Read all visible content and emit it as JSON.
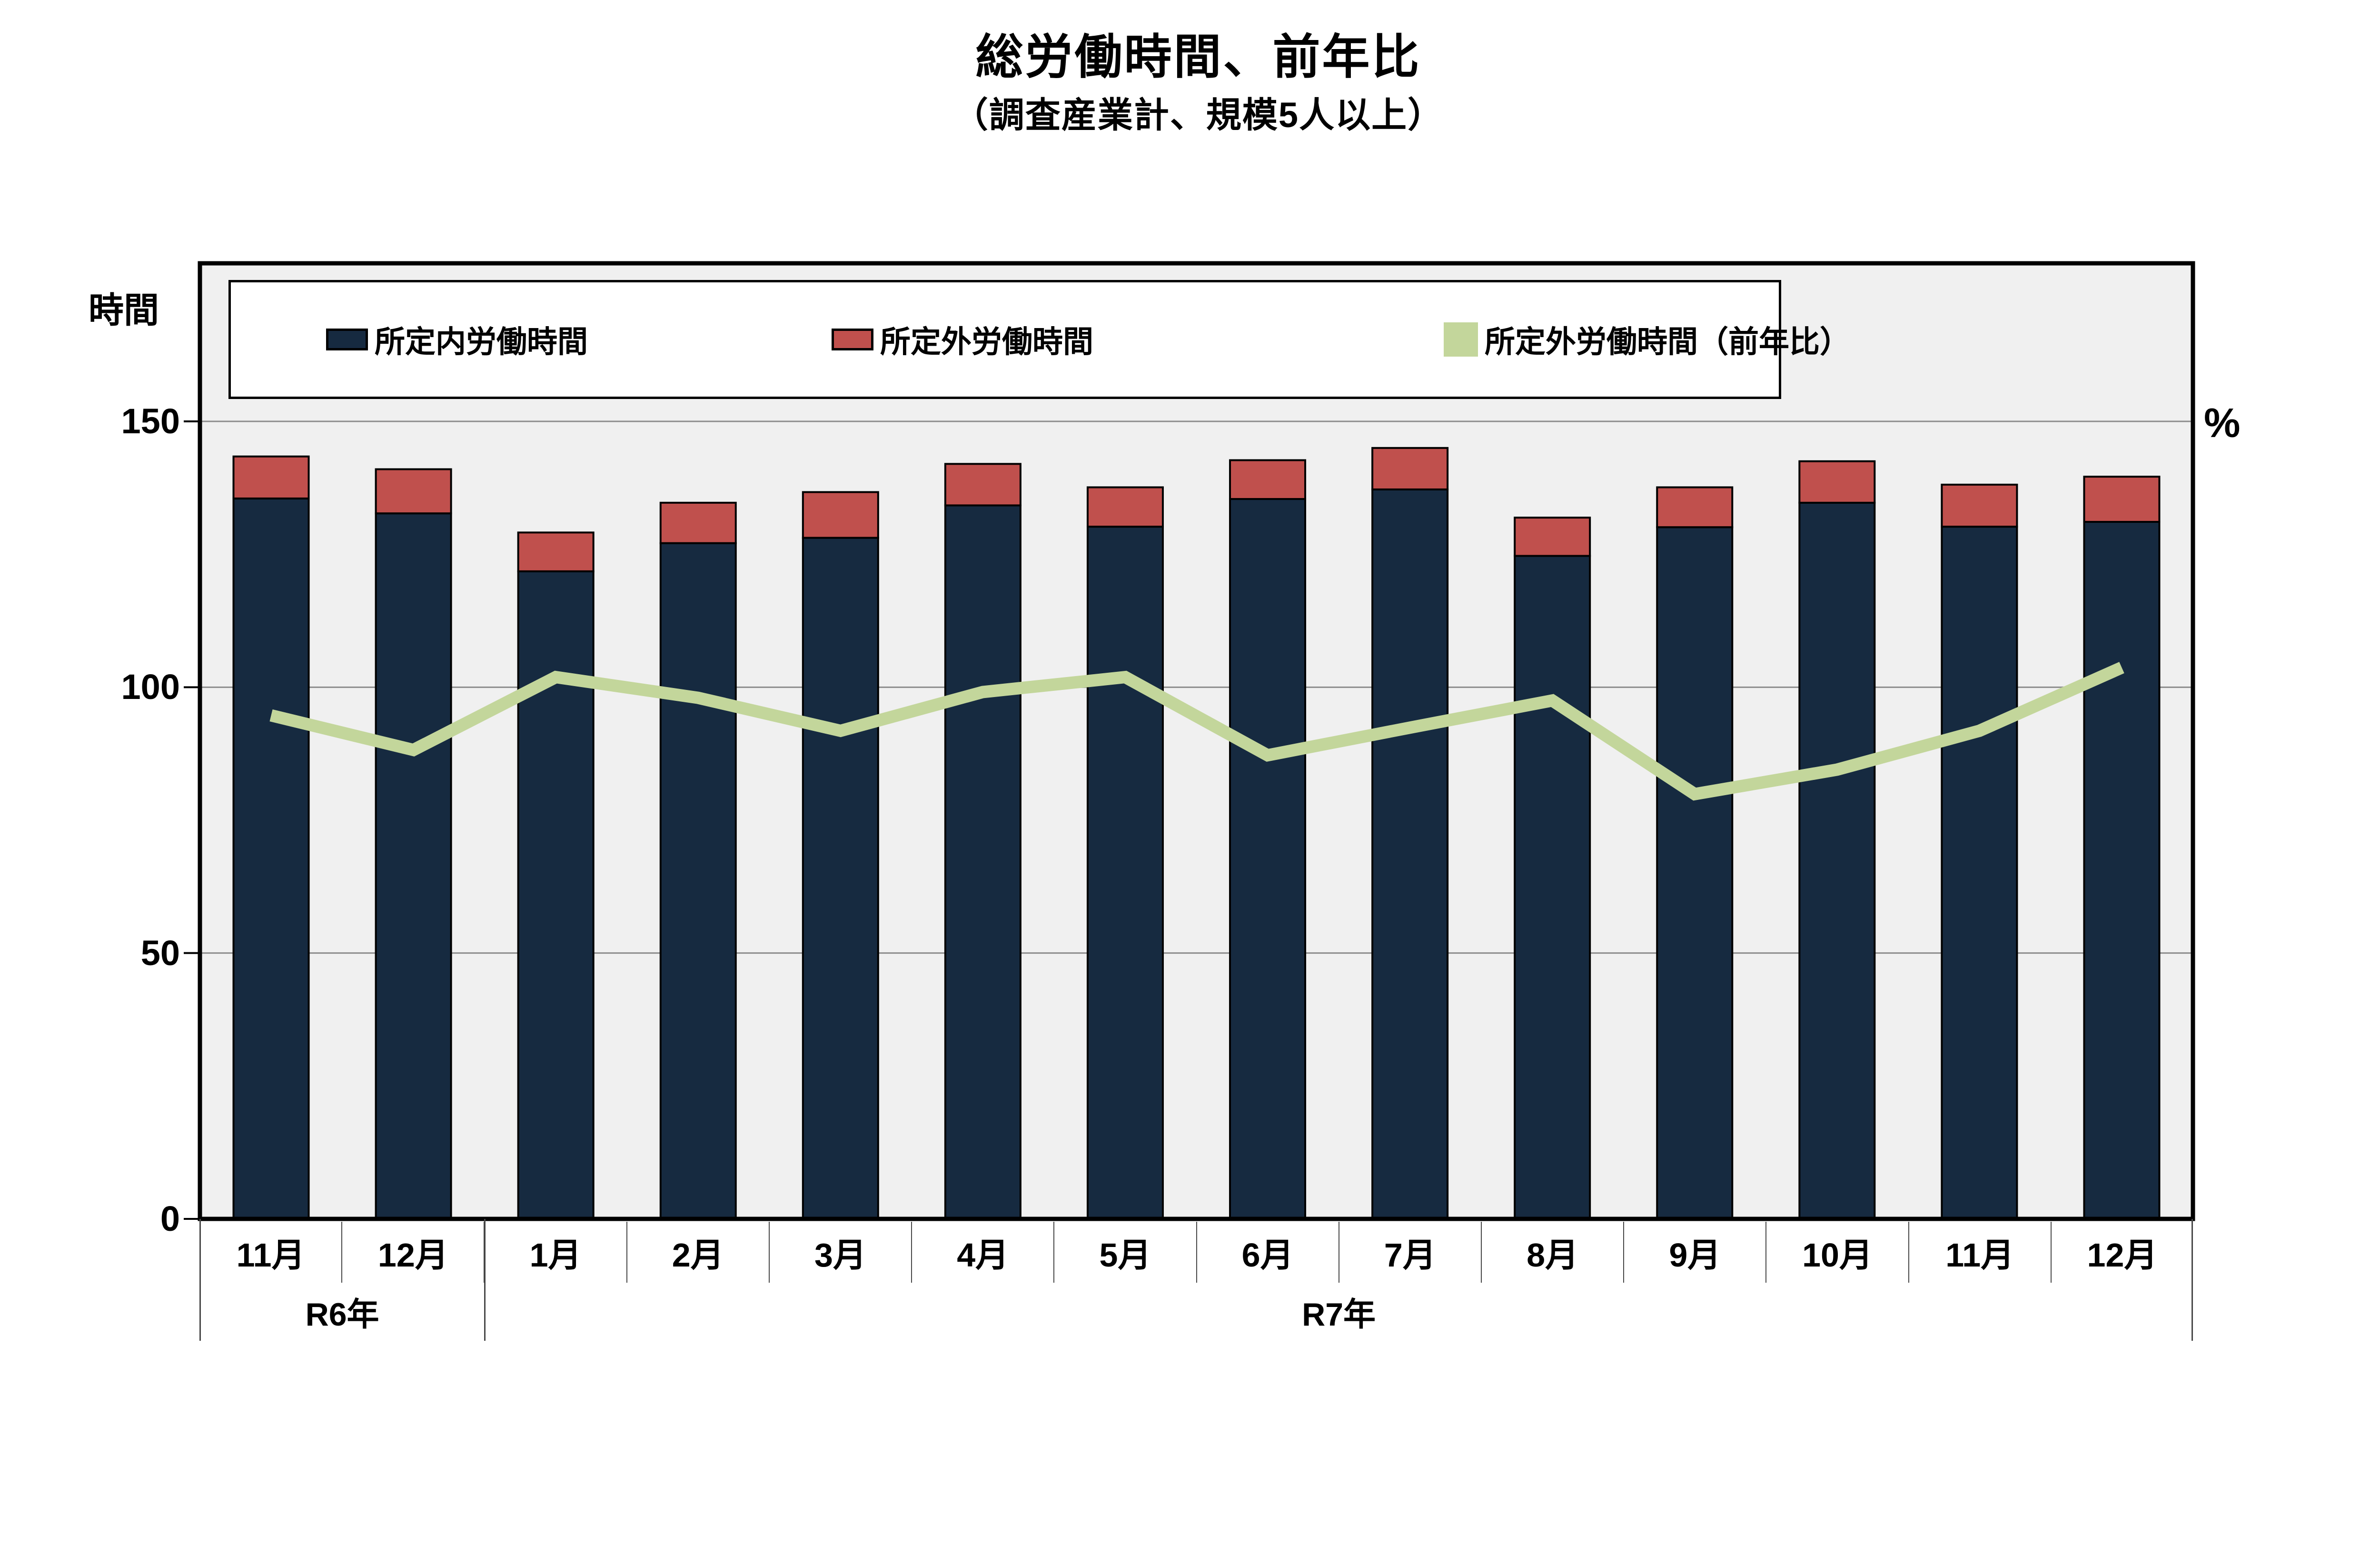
{
  "title": "総労働時間、前年比",
  "subtitle": "（調査産業計、規模5人以上）",
  "axes": {
    "left_unit": "時間",
    "right_unit": "%",
    "left_ticks": [
      "150",
      "100",
      "50",
      "0"
    ],
    "left_tick_values": [
      150,
      100,
      50,
      0
    ]
  },
  "legend": {
    "series1": "所定内労働時間",
    "series2": "所定外労働時間",
    "series3": "所定外労働時間（前年比）"
  },
  "colors": {
    "scheduled_hours_bar": "#162A40",
    "overtime_hours_bar": "#C0504D",
    "yoy_line": "#C3D69B",
    "plot_background": "#F0F0F0",
    "gridline": "#8C8C8C",
    "frame": "#000000"
  },
  "chart_data": {
    "type": "bar",
    "subtype": "stacked-bar-with-line",
    "categories": [
      "11月",
      "12月",
      "1月",
      "2月",
      "3月",
      "4月",
      "5月",
      "6月",
      "7月",
      "8月",
      "9月",
      "10月",
      "11月",
      "12月"
    ],
    "year_groups": [
      {
        "label": "R6年",
        "span": 2
      },
      {
        "label": "R7年",
        "span": 12
      }
    ],
    "series": [
      {
        "name": "所定内労働時間",
        "type": "bar",
        "stack": "hours",
        "color": "#162A40",
        "values": [
          135.5,
          132.7,
          121.8,
          127.1,
          128.1,
          134.2,
          130.2,
          135.4,
          137.2,
          124.7,
          130.1,
          134.7,
          130.2,
          131.1
        ]
      },
      {
        "name": "所定外労働時間",
        "type": "bar",
        "stack": "hours",
        "color": "#C0504D",
        "values": [
          7.9,
          8.3,
          7.3,
          7.6,
          8.6,
          7.8,
          7.4,
          7.3,
          7.8,
          7.2,
          7.5,
          7.8,
          7.9,
          8.5
        ]
      },
      {
        "name": "所定外労働時間（前年比）",
        "type": "line",
        "axis": "right",
        "color": "#C3D69B",
        "values": [
          94.7,
          88.2,
          101.9,
          98.0,
          91.8,
          99.1,
          101.9,
          87.2,
          92.4,
          97.5,
          79.9,
          84.5,
          91.8,
          103.7
        ]
      }
    ],
    "ylabel_left": "時間",
    "ylabel_right": "%",
    "ylim_left": [
      0,
      157
    ],
    "yticks_left": [
      0,
      50,
      100,
      150
    ],
    "grid": true,
    "legend_position": "top-inside"
  }
}
